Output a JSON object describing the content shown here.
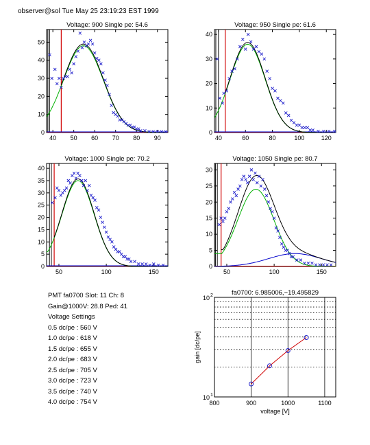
{
  "header": {
    "text": "observer@sol  Tue May 25 23:19:23 EST 1999"
  },
  "info": {
    "pmt_line": "PMT fa0700 Slot: 11 Ch: 8",
    "gain_line": "Gain@1000V: 28.8 Ped: 41",
    "settings_title": "Voltage Settings",
    "settings": [
      "0.5 dc/pe : 560 V",
      "1.0 dc/pe : 618 V",
      "1.5 dc/pe : 655 V",
      "2.0 dc/pe : 683 V",
      "2.5 dc/pe : 705 V",
      "3.0 dc/pe : 723 V",
      "3.5 dc/pe : 740 V",
      "4.0 dc/pe : 754 V"
    ]
  },
  "chart_data": [
    {
      "type": "scatter",
      "title": "Voltage: 900 Single pe: 54.6",
      "xlim": [
        37,
        95
      ],
      "ylim": [
        0,
        57
      ],
      "xticks": [
        40,
        50,
        60,
        70,
        80,
        90
      ],
      "yticks": [
        0,
        10,
        20,
        30,
        40,
        50
      ],
      "pedestal_lines": [
        37.6,
        38.4,
        44
      ],
      "peak": 54.6,
      "sigma": 9.5,
      "amplitude": 48,
      "green_floor": 7,
      "points": [
        [
          38.5,
          43
        ],
        [
          39.5,
          30
        ],
        [
          41,
          35
        ],
        [
          42,
          27
        ],
        [
          43,
          30
        ],
        [
          44,
          25
        ],
        [
          45,
          30
        ],
        [
          46,
          31
        ],
        [
          47,
          31
        ],
        [
          48,
          35
        ],
        [
          49,
          33
        ],
        [
          50,
          38
        ],
        [
          51,
          42
        ],
        [
          52,
          45
        ],
        [
          53,
          55
        ],
        [
          54,
          47
        ],
        [
          55,
          50
        ],
        [
          56,
          48
        ],
        [
          57,
          49
        ],
        [
          58,
          51
        ],
        [
          59,
          49
        ],
        [
          60,
          44
        ],
        [
          61,
          41
        ],
        [
          62,
          40
        ],
        [
          63,
          38
        ],
        [
          64,
          33
        ],
        [
          65,
          29
        ],
        [
          66,
          26
        ],
        [
          67,
          21
        ],
        [
          68,
          15
        ],
        [
          69,
          11
        ],
        [
          70,
          10
        ],
        [
          71,
          9
        ],
        [
          72,
          7
        ],
        [
          73,
          7
        ],
        [
          74,
          6
        ],
        [
          75,
          5
        ],
        [
          76,
          4
        ],
        [
          77,
          4
        ],
        [
          78,
          3
        ],
        [
          79,
          3
        ],
        [
          80,
          2
        ],
        [
          81,
          2
        ],
        [
          82,
          1
        ],
        [
          84,
          1
        ],
        [
          86,
          0.5
        ],
        [
          88,
          0.5
        ],
        [
          90,
          0.5
        ],
        [
          92,
          0.5
        ],
        [
          94,
          0.5
        ]
      ],
      "background": false
    },
    {
      "type": "scatter",
      "title": "Voltage: 950 Single pe: 61.6",
      "xlim": [
        37,
        127
      ],
      "ylim": [
        0,
        42
      ],
      "xticks": [
        40,
        60,
        80,
        100,
        120
      ],
      "yticks": [
        0,
        10,
        20,
        30,
        40
      ],
      "pedestal_lines": [
        38,
        40,
        45
      ],
      "peak": 61.6,
      "sigma": 13,
      "amplitude": 36,
      "green_floor": 6,
      "points": [
        [
          39,
          30
        ],
        [
          41,
          14
        ],
        [
          43,
          12
        ],
        [
          44,
          16
        ],
        [
          46,
          17
        ],
        [
          48,
          22
        ],
        [
          50,
          25
        ],
        [
          52,
          26
        ],
        [
          54,
          30
        ],
        [
          56,
          35
        ],
        [
          58,
          38
        ],
        [
          60,
          34
        ],
        [
          62,
          40
        ],
        [
          64,
          37
        ],
        [
          66,
          34
        ],
        [
          68,
          35
        ],
        [
          70,
          33
        ],
        [
          72,
          32
        ],
        [
          74,
          30
        ],
        [
          76,
          25
        ],
        [
          78,
          22
        ],
        [
          80,
          18
        ],
        [
          82,
          17
        ],
        [
          84,
          14
        ],
        [
          86,
          13
        ],
        [
          88,
          12
        ],
        [
          90,
          8
        ],
        [
          92,
          7
        ],
        [
          94,
          5
        ],
        [
          96,
          4
        ],
        [
          98,
          3
        ],
        [
          100,
          3
        ],
        [
          102,
          2
        ],
        [
          104,
          2
        ],
        [
          106,
          2
        ],
        [
          108,
          1
        ],
        [
          110,
          1
        ],
        [
          114,
          0.5
        ],
        [
          118,
          0.5
        ],
        [
          122,
          0.5
        ],
        [
          126,
          0.5
        ]
      ],
      "background": false
    },
    {
      "type": "scatter",
      "title": "Voltage: 1000 Single pe: 70.2",
      "xlim": [
        37,
        165
      ],
      "ylim": [
        0,
        42
      ],
      "xticks": [
        50,
        100,
        150
      ],
      "yticks": [
        0,
        5,
        10,
        15,
        20,
        25,
        30,
        35,
        40
      ],
      "pedestal_lines": [
        40,
        42,
        45
      ],
      "peak": 70.2,
      "sigma": 17,
      "amplitude": 35,
      "green_floor": 6,
      "points": [
        [
          43,
          26
        ],
        [
          46,
          28
        ],
        [
          48,
          32
        ],
        [
          50,
          31
        ],
        [
          52,
          29
        ],
        [
          54,
          30
        ],
        [
          56,
          31
        ],
        [
          58,
          32
        ],
        [
          60,
          35
        ],
        [
          62,
          34
        ],
        [
          64,
          37
        ],
        [
          66,
          38
        ],
        [
          68,
          36
        ],
        [
          70,
          38
        ],
        [
          72,
          37
        ],
        [
          74,
          35
        ],
        [
          76,
          33
        ],
        [
          78,
          35
        ],
        [
          80,
          31
        ],
        [
          82,
          33
        ],
        [
          84,
          29
        ],
        [
          86,
          28
        ],
        [
          88,
          27
        ],
        [
          90,
          24
        ],
        [
          92,
          23
        ],
        [
          94,
          20
        ],
        [
          96,
          18
        ],
        [
          98,
          16
        ],
        [
          100,
          14
        ],
        [
          102,
          12
        ],
        [
          104,
          11
        ],
        [
          106,
          10
        ],
        [
          108,
          8
        ],
        [
          110,
          7
        ],
        [
          112,
          6
        ],
        [
          114,
          6
        ],
        [
          116,
          5
        ],
        [
          118,
          4
        ],
        [
          120,
          4
        ],
        [
          122,
          3
        ],
        [
          124,
          3
        ],
        [
          126,
          2
        ],
        [
          130,
          2
        ],
        [
          134,
          1
        ],
        [
          138,
          1
        ],
        [
          142,
          1
        ],
        [
          146,
          0.5
        ],
        [
          150,
          1
        ],
        [
          155,
          0.5
        ],
        [
          160,
          0.5
        ]
      ],
      "background": false
    },
    {
      "type": "scatter",
      "title": "Voltage: 1050 Single pe: 80.7",
      "xlim": [
        37,
        165
      ],
      "ylim": [
        0,
        32
      ],
      "xticks": [
        50,
        100,
        150
      ],
      "yticks": [
        0,
        5,
        10,
        15,
        20,
        25,
        30
      ],
      "pedestal_lines": [
        38,
        40,
        44
      ],
      "peak": 80.7,
      "sigma": 19,
      "amplitude": 24,
      "green_floor": 4,
      "points": [
        [
          42,
          13
        ],
        [
          44,
          15
        ],
        [
          46,
          14
        ],
        [
          48,
          15
        ],
        [
          50,
          17
        ],
        [
          52,
          18
        ],
        [
          54,
          20
        ],
        [
          56,
          21
        ],
        [
          58,
          23
        ],
        [
          60,
          22
        ],
        [
          62,
          24
        ],
        [
          64,
          25
        ],
        [
          66,
          27
        ],
        [
          68,
          28
        ],
        [
          70,
          27
        ],
        [
          72,
          26
        ],
        [
          74,
          28
        ],
        [
          76,
          30
        ],
        [
          78,
          27
        ],
        [
          80,
          29
        ],
        [
          82,
          26
        ],
        [
          84,
          28
        ],
        [
          86,
          25
        ],
        [
          88,
          27
        ],
        [
          90,
          24
        ],
        [
          92,
          22
        ],
        [
          94,
          20
        ],
        [
          96,
          18
        ],
        [
          98,
          17
        ],
        [
          100,
          15
        ],
        [
          102,
          12
        ],
        [
          104,
          11
        ],
        [
          106,
          9
        ],
        [
          108,
          7
        ],
        [
          110,
          6
        ],
        [
          112,
          5
        ],
        [
          114,
          5
        ],
        [
          116,
          4
        ],
        [
          118,
          3
        ],
        [
          120,
          3
        ],
        [
          124,
          2
        ],
        [
          128,
          2
        ],
        [
          132,
          1
        ],
        [
          136,
          1
        ],
        [
          140,
          1
        ],
        [
          144,
          0.5
        ],
        [
          148,
          0.5
        ],
        [
          152,
          0.5
        ],
        [
          156,
          0.5
        ],
        [
          160,
          0.5
        ]
      ],
      "background": true,
      "background_peak": 122,
      "background_sigma": 28,
      "background_amplitude": 4
    },
    {
      "type": "line",
      "title": "fa0700: 6.985006,−19.495829",
      "xlabel": "voltage [V]",
      "ylabel": "gain [dc/pe]",
      "xlim": [
        800,
        1130
      ],
      "ylim": [
        10,
        100
      ],
      "yscale": "log",
      "xticks": [
        800,
        900,
        1000,
        1100
      ],
      "ytick_labels": [
        {
          "base": "10",
          "exp": "1",
          "value": 10
        },
        {
          "base": "10",
          "exp": "2",
          "value": 100
        }
      ],
      "x": [
        900,
        950,
        1000,
        1050
      ],
      "y": [
        13.5,
        20.5,
        29.2,
        39.5
      ]
    }
  ]
}
